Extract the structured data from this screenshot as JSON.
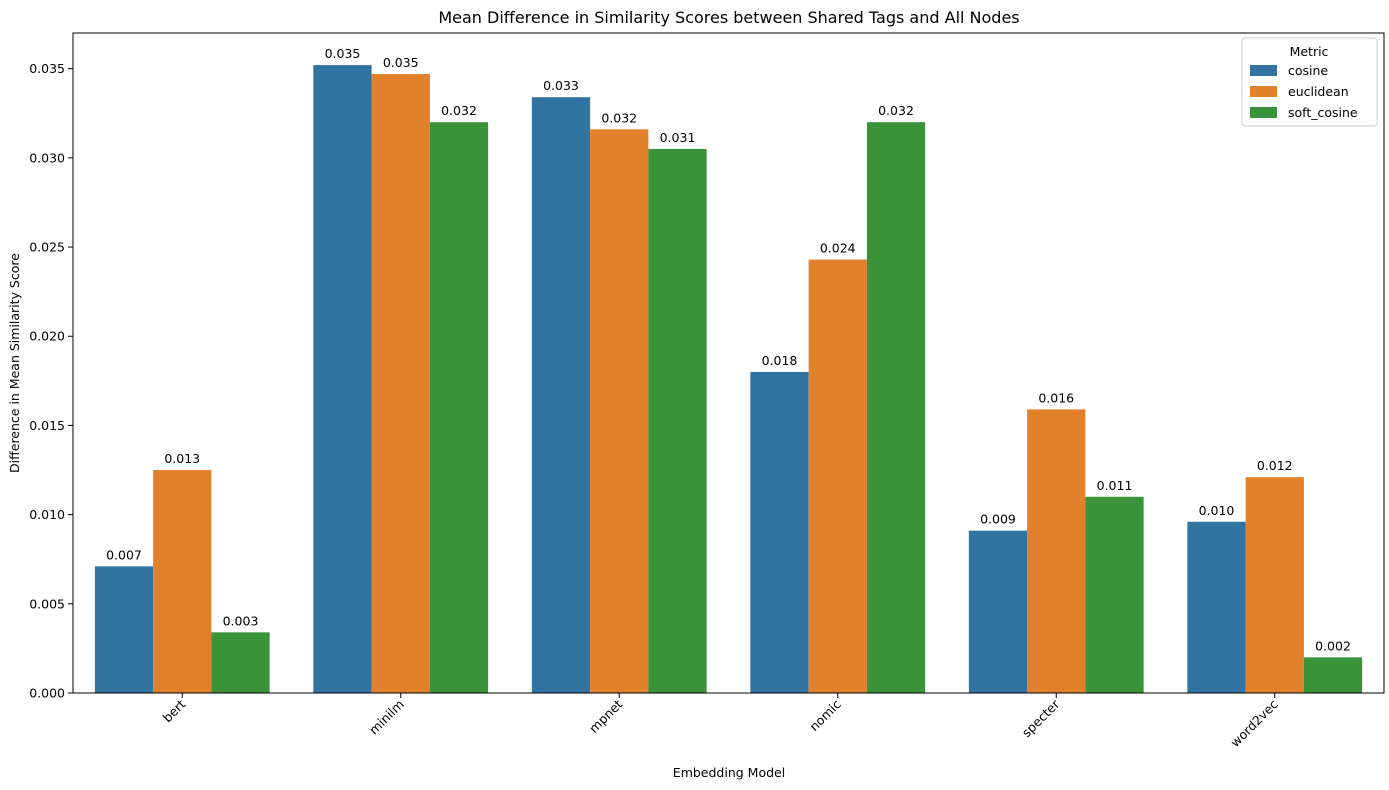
{
  "chart_data": {
    "type": "bar",
    "title": "Mean Difference in Similarity Scores between Shared Tags and All Nodes",
    "xlabel": "Embedding Model",
    "ylabel": "Difference in Mean Similarity Score",
    "categories": [
      "bert",
      "minilm",
      "mpnet",
      "nomic",
      "specter",
      "word2vec"
    ],
    "series": [
      {
        "name": "cosine",
        "color": "#3274a1",
        "values": [
          0.0071,
          0.0352,
          0.0334,
          0.018,
          0.0091,
          0.0096
        ],
        "labels": [
          "0.007",
          "0.035",
          "0.033",
          "0.018",
          "0.009",
          "0.010"
        ]
      },
      {
        "name": "euclidean",
        "color": "#e1812c",
        "values": [
          0.0125,
          0.0347,
          0.0316,
          0.0243,
          0.0159,
          0.0121
        ],
        "labels": [
          "0.013",
          "0.035",
          "0.032",
          "0.024",
          "0.016",
          "0.012"
        ]
      },
      {
        "name": "soft_cosine",
        "color": "#3a923a",
        "values": [
          0.0034,
          0.032,
          0.0305,
          0.032,
          0.011,
          0.002
        ],
        "labels": [
          "0.003",
          "0.032",
          "0.031",
          "0.032",
          "0.011",
          "0.002"
        ]
      }
    ],
    "ylim": [
      0,
      0.037
    ],
    "yticks": [
      0.0,
      0.005,
      0.01,
      0.015,
      0.02,
      0.025,
      0.03,
      0.035
    ],
    "ytick_labels": [
      "0.000",
      "0.005",
      "0.010",
      "0.015",
      "0.020",
      "0.025",
      "0.030",
      "0.035"
    ],
    "xtick_rotation": 45,
    "grid": false,
    "legend": {
      "title": "Metric",
      "placement": "top-right"
    }
  }
}
